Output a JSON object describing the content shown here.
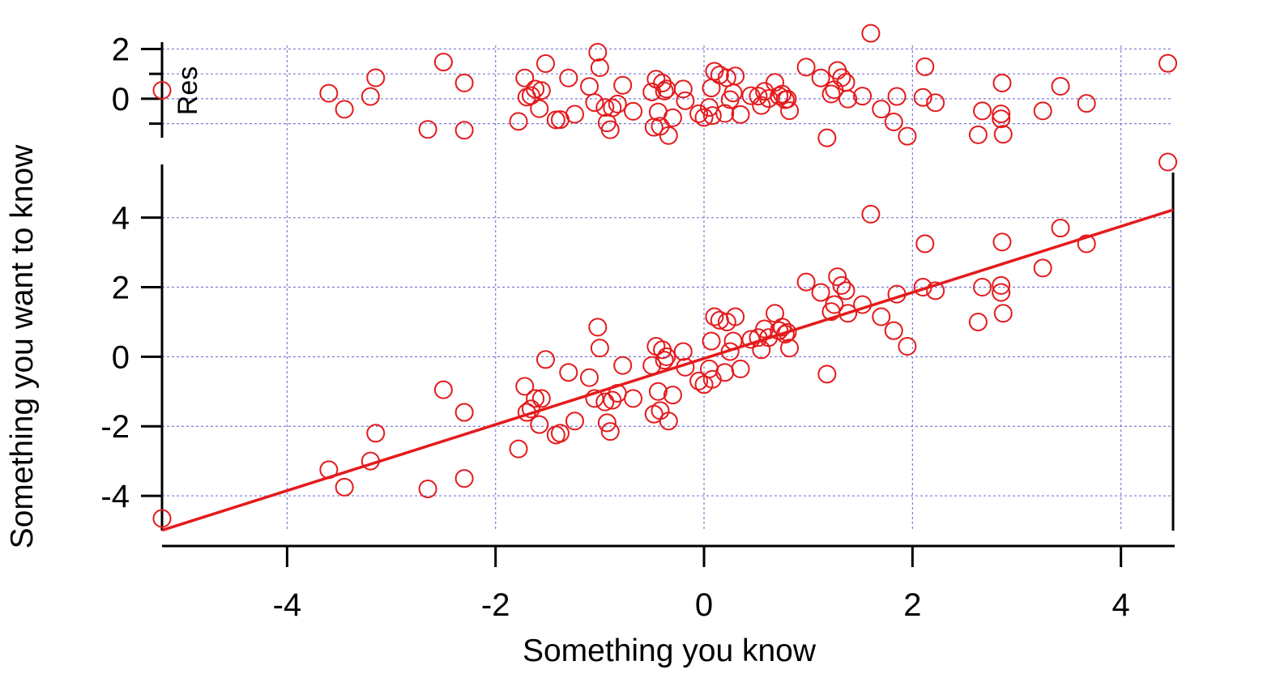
{
  "chart_data": {
    "type": "scatter",
    "xlabel": "Something you know",
    "ylabel": "Something you want to know",
    "residual_label": "Res",
    "xlim": [
      -5.2,
      4.5
    ],
    "ylim_main": [
      -5.0,
      5.6
    ],
    "ylim_res": [
      -1.5,
      2.6
    ],
    "x_ticks": [
      -4,
      -2,
      0,
      2,
      4
    ],
    "y_ticks_main": [
      -4,
      -2,
      0,
      2,
      4
    ],
    "y_ticks_res": [
      0,
      2
    ],
    "y_minor_ticks_res": [
      -1,
      1
    ],
    "grid": true,
    "colors": {
      "series": "#e41a1c",
      "grid": "#7b7bd6",
      "axis": "#000000"
    },
    "fit_line": {
      "slope": 0.95,
      "intercept": -0.05
    },
    "series": [
      {
        "x": [
          -5.2,
          -3.6,
          -3.45,
          -3.2,
          -3.15,
          -2.65,
          -2.5,
          -2.3,
          -2.3,
          -1.78,
          -1.72,
          -1.7,
          -1.66,
          -1.62,
          -1.58,
          -1.56,
          -1.52,
          -1.42,
          -1.38,
          -1.3,
          -1.24,
          -1.1,
          -1.05,
          -1.02,
          -1.0,
          -0.95,
          -0.93,
          -0.9,
          -0.88,
          -0.83,
          -0.78,
          -0.68,
          -0.5,
          -0.48,
          -0.46,
          -0.44,
          -0.42,
          -0.4,
          -0.38,
          -0.36,
          -0.34,
          -0.3,
          -0.2,
          -0.18,
          -0.05,
          0.0,
          0.05,
          0.07,
          0.08,
          0.1,
          0.15,
          0.2,
          0.22,
          0.25,
          0.28,
          0.3,
          0.35,
          0.45,
          0.52,
          0.55,
          0.58,
          0.62,
          0.68,
          0.72,
          0.75,
          0.78,
          0.8,
          0.82,
          0.98,
          1.12,
          1.18,
          1.22,
          1.25,
          1.28,
          1.32,
          1.36,
          1.38,
          1.52,
          1.6,
          1.7,
          1.82,
          1.85,
          1.95,
          2.1,
          2.12,
          2.22,
          2.63,
          2.67,
          2.85,
          2.85,
          2.86,
          2.87,
          3.25,
          3.42,
          3.67,
          4.45
        ],
        "y": [
          -4.65,
          -3.25,
          -3.75,
          -3.0,
          -2.2,
          -3.8,
          -0.95,
          -1.6,
          -3.5,
          -2.65,
          -0.85,
          -1.6,
          -1.5,
          -1.2,
          -1.95,
          -1.2,
          -0.08,
          -2.25,
          -2.2,
          -0.45,
          -1.85,
          -0.6,
          -1.2,
          0.85,
          0.25,
          -1.3,
          -1.9,
          -2.15,
          -1.25,
          -1.05,
          -0.25,
          -1.2,
          -0.25,
          -1.65,
          0.3,
          -1.0,
          -1.55,
          0.2,
          -0.1,
          0.0,
          -1.85,
          -1.1,
          0.15,
          -0.3,
          -0.7,
          -0.8,
          -0.35,
          0.45,
          -0.65,
          1.15,
          1.05,
          -0.45,
          1.0,
          0.15,
          0.45,
          1.15,
          -0.35,
          0.5,
          0.55,
          0.2,
          0.8,
          0.55,
          1.25,
          0.75,
          0.85,
          0.65,
          0.7,
          0.25,
          2.15,
          1.85,
          -0.5,
          1.3,
          1.5,
          2.3,
          2.05,
          1.9,
          1.25,
          1.5,
          4.1,
          1.15,
          0.75,
          1.8,
          0.3,
          2.0,
          3.25,
          1.9,
          1.0,
          2.0,
          1.85,
          2.05,
          3.3,
          1.25,
          2.55,
          3.7,
          3.25,
          5.6
        ]
      }
    ]
  }
}
